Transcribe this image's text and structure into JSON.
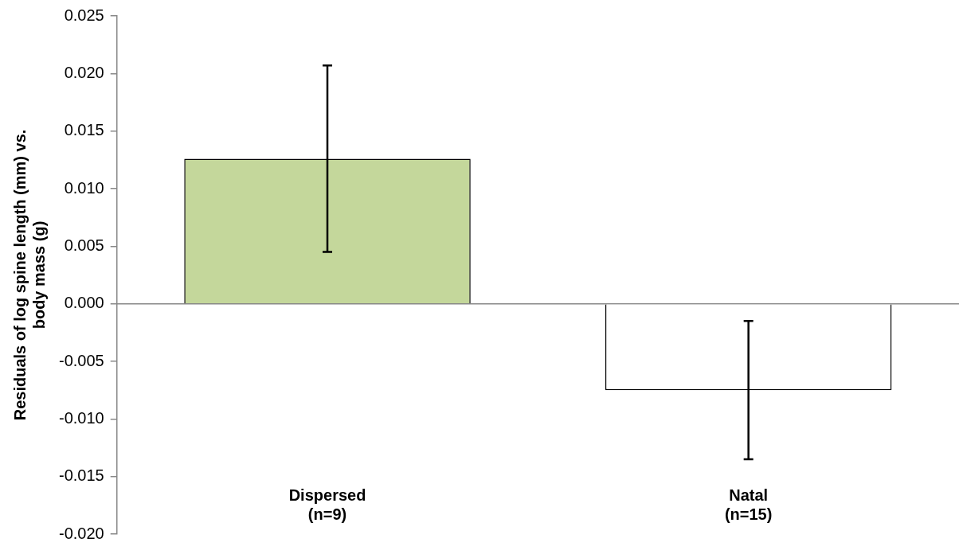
{
  "chart_data": {
    "type": "bar",
    "ylabel": "Residuals of log spine length (mm) vs. body mass (g)",
    "categories": [
      "Dispersed (n=9)",
      "Natal (n=15)"
    ],
    "values": [
      0.0126,
      -0.0075
    ],
    "colors": [
      "#c4d79b",
      "#ffffff"
    ],
    "errors": [
      0.0081,
      0.006
    ],
    "ylim": [
      -0.02,
      0.025
    ],
    "yticks": [
      {
        "value": -0.02,
        "label": "-0.020"
      },
      {
        "value": -0.015,
        "label": "-0.015"
      },
      {
        "value": -0.01,
        "label": "-0.010"
      },
      {
        "value": -0.005,
        "label": "-0.005"
      },
      {
        "value": 0,
        "label": "0.000"
      },
      {
        "value": 0.005,
        "label": "0.005"
      },
      {
        "value": 0.01,
        "label": "0.010"
      },
      {
        "value": 0.015,
        "label": "0.015"
      },
      {
        "value": 0.02,
        "label": "0.020"
      },
      {
        "value": 0.025,
        "label": "0.025"
      }
    ],
    "legend": false
  }
}
